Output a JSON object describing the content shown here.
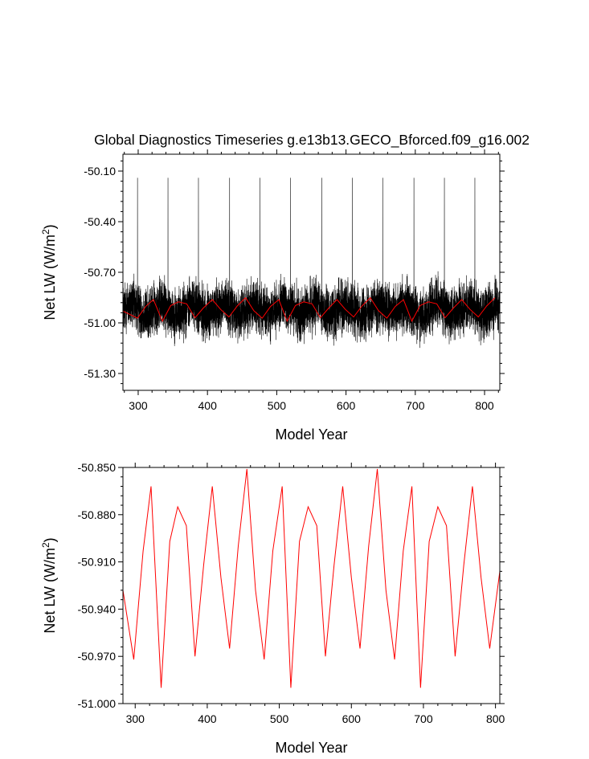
{
  "title": "Global Diagnostics Timeseries g.e13b13.GECO_Bforced.f09_g16.002",
  "chart_data": [
    {
      "type": "line",
      "xlabel": "Model Year",
      "ylabel_main": "Net LW (W/m",
      "ylabel_sup": "2",
      "ylabel_end": ")",
      "xlim": [
        278,
        822
      ],
      "ylim": [
        -51.4,
        -50.0
      ],
      "xticks": [
        300,
        400,
        500,
        600,
        700,
        800
      ],
      "xtick_labels": [
        "300",
        "400",
        "500",
        "600",
        "700",
        "800"
      ],
      "yticks": [
        -51.3,
        -51.0,
        -50.7,
        -50.4,
        -50.1
      ],
      "ytick_labels": [
        "-51.30",
        "-51.00",
        "-50.70",
        "-50.40",
        "-50.10"
      ],
      "series": [
        {
          "color": "#000000",
          "style": "monthly",
          "x_start": 278.0417,
          "x_step": 0.0833,
          "n": 6528,
          "base": -50.92,
          "noise_amp": 0.2,
          "spike_years": [
            299,
            343,
            387,
            432,
            476,
            520,
            565,
            609,
            653,
            698,
            742,
            786
          ],
          "spike_value": -50.14,
          "min_value": -51.32
        },
        {
          "color": "#ff0000",
          "style": "annual",
          "x": [
            278,
            299,
            311,
            322,
            335,
            347,
            358,
            370,
            382,
            394,
            407,
            419,
            431,
            443,
            455,
            467,
            479,
            491,
            503,
            515,
            527,
            539,
            551,
            563,
            575,
            587,
            599,
            611,
            623,
            635,
            647,
            659,
            671,
            683,
            695,
            707,
            719,
            731,
            743,
            755,
            767,
            779,
            791,
            803,
            815
          ],
          "y": [
            -50.93,
            -50.972,
            -50.902,
            -50.862,
            -50.99,
            -50.897,
            -50.875,
            -50.887,
            -50.97,
            -50.912,
            -50.862,
            -50.92,
            -50.965,
            -50.9,
            -50.851,
            -50.928,
            -50.972,
            -50.903,
            -50.862,
            -50.99,
            -50.897,
            -50.875,
            -50.887,
            -50.97,
            -50.912,
            -50.862,
            -50.92,
            -50.965,
            -50.9,
            -50.851,
            -50.928,
            -50.972,
            -50.903,
            -50.862,
            -50.99,
            -50.897,
            -50.875,
            -50.887,
            -50.97,
            -50.912,
            -50.862,
            -50.92,
            -50.965,
            -50.9,
            -50.851
          ]
        }
      ]
    },
    {
      "type": "line",
      "xlabel": "Model Year",
      "ylabel_main": "Net LW (W/m",
      "ylabel_sup": "2",
      "ylabel_end": ")",
      "xlim": [
        283,
        806
      ],
      "ylim": [
        -51.0,
        -50.85
      ],
      "xticks": [
        300,
        400,
        500,
        600,
        700,
        800
      ],
      "xtick_labels": [
        "300",
        "400",
        "500",
        "600",
        "700",
        "800"
      ],
      "yticks": [
        -51.0,
        -50.97,
        -50.94,
        -50.91,
        -50.88,
        -50.85
      ],
      "ytick_labels": [
        "-51.000",
        "-50.970",
        "-50.940",
        "-50.910",
        "-50.880",
        "-50.850"
      ],
      "series": [
        {
          "color": "#ff0000",
          "style": "annual",
          "x": [
            283,
            298,
            311,
            322,
            336,
            348,
            359,
            371,
            383,
            395,
            407,
            419,
            431,
            443,
            455,
            467,
            479,
            491,
            504,
            516,
            528,
            540,
            552,
            564,
            576,
            588,
            600,
            612,
            624,
            636,
            648,
            660,
            672,
            684,
            696,
            708,
            720,
            732,
            744,
            756,
            768,
            780,
            792,
            806
          ],
          "y": [
            -50.928,
            -50.972,
            -50.903,
            -50.862,
            -50.99,
            -50.897,
            -50.875,
            -50.887,
            -50.97,
            -50.912,
            -50.862,
            -50.92,
            -50.965,
            -50.9,
            -50.851,
            -50.928,
            -50.972,
            -50.903,
            -50.862,
            -50.99,
            -50.897,
            -50.875,
            -50.887,
            -50.97,
            -50.912,
            -50.862,
            -50.92,
            -50.965,
            -50.9,
            -50.851,
            -50.928,
            -50.972,
            -50.903,
            -50.862,
            -50.99,
            -50.897,
            -50.875,
            -50.887,
            -50.97,
            -50.912,
            -50.862,
            -50.92,
            -50.965,
            -50.916
          ]
        }
      ]
    }
  ]
}
